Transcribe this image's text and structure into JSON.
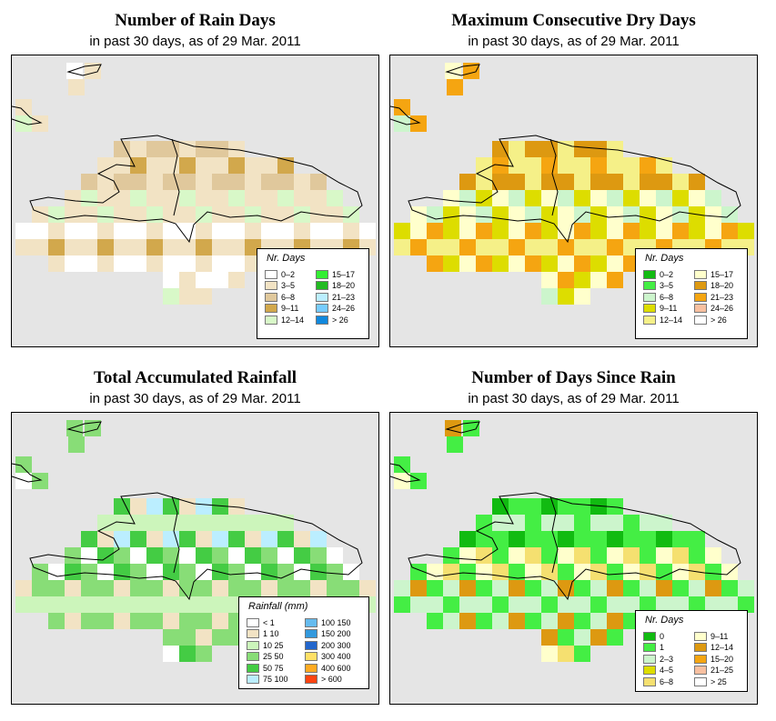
{
  "panels": [
    {
      "title": "Number of Rain Days",
      "subtitle": "in past 30 days, as of  29 Mar. 2011",
      "legend_title": "Nr. Days",
      "legend": [
        {
          "label": "0–2",
          "color": "#ffffff"
        },
        {
          "label": "3–5",
          "color": "#f2e3c4"
        },
        {
          "label": "6–8",
          "color": "#e0c89c"
        },
        {
          "label": "9–11",
          "color": "#d2a84c"
        },
        {
          "label": "12–14",
          "color": "#d8f8c8"
        },
        {
          "label": "15–17",
          "color": "#33ee33"
        },
        {
          "label": "18–20",
          "color": "#22bb22"
        },
        {
          "label": "21–23",
          "color": "#bbeeff"
        },
        {
          "label": "24–26",
          "color": "#77ccff"
        },
        {
          "label": "> 26",
          "color": "#1188dd"
        }
      ]
    },
    {
      "title": "Maximum Consecutive Dry Days",
      "subtitle": "in past 30 days, as of  29 Mar. 2011",
      "legend_title": "Nr. Days",
      "legend": [
        {
          "label": "0–2",
          "color": "#11bb11"
        },
        {
          "label": "3–5",
          "color": "#44ee44"
        },
        {
          "label": "6–8",
          "color": "#ccf5cc"
        },
        {
          "label": "9–11",
          "color": "#dddd00"
        },
        {
          "label": "12–14",
          "color": "#f5f088"
        },
        {
          "label": "15–17",
          "color": "#ffffcc"
        },
        {
          "label": "18–20",
          "color": "#dd9911"
        },
        {
          "label": "21–23",
          "color": "#f5a511"
        },
        {
          "label": "24–26",
          "color": "#f8c0a0"
        },
        {
          "label": "> 26",
          "color": "#ffffff"
        }
      ]
    },
    {
      "title": "Total Accumulated Rainfall",
      "subtitle": "in past 30 days, as of  29 Mar. 2011",
      "legend_title": "Rainfall (mm)",
      "legend": [
        {
          "label": "< 1",
          "color": "#ffffff"
        },
        {
          "label": "1    10",
          "color": "#f2e3c4"
        },
        {
          "label": "10    25",
          "color": "#ccf5bb"
        },
        {
          "label": "25    50",
          "color": "#88dd77"
        },
        {
          "label": "50    75",
          "color": "#44cc44"
        },
        {
          "label": "75   100",
          "color": "#bbeeff"
        },
        {
          "label": "100   150",
          "color": "#66bbee"
        },
        {
          "label": "150   200",
          "color": "#3399dd"
        },
        {
          "label": "200   300",
          "color": "#2266cc"
        },
        {
          "label": "300   400",
          "color": "#ffe066"
        },
        {
          "label": "400   600",
          "color": "#ffaa22"
        },
        {
          "label": "> 600",
          "color": "#ff4411"
        }
      ]
    },
    {
      "title": "Number of Days Since Rain",
      "subtitle": "in past 30 days, as of  29 Mar. 2011",
      "legend_title": "Nr. Days",
      "legend": [
        {
          "label": "0",
          "color": "#11bb11"
        },
        {
          "label": "1",
          "color": "#44ee44"
        },
        {
          "label": "2–3",
          "color": "#ccf5cc"
        },
        {
          "label": "4–5",
          "color": "#dddd00"
        },
        {
          "label": "6–8",
          "color": "#f5e070"
        },
        {
          "label": "9–11",
          "color": "#ffffcc"
        },
        {
          "label": "12–14",
          "color": "#dd9911"
        },
        {
          "label": "15–20",
          "color": "#f5a511"
        },
        {
          "label": "21–25",
          "color": "#f8c0a0"
        },
        {
          "label": "> 25",
          "color": "#ffffff"
        }
      ]
    }
  ]
}
